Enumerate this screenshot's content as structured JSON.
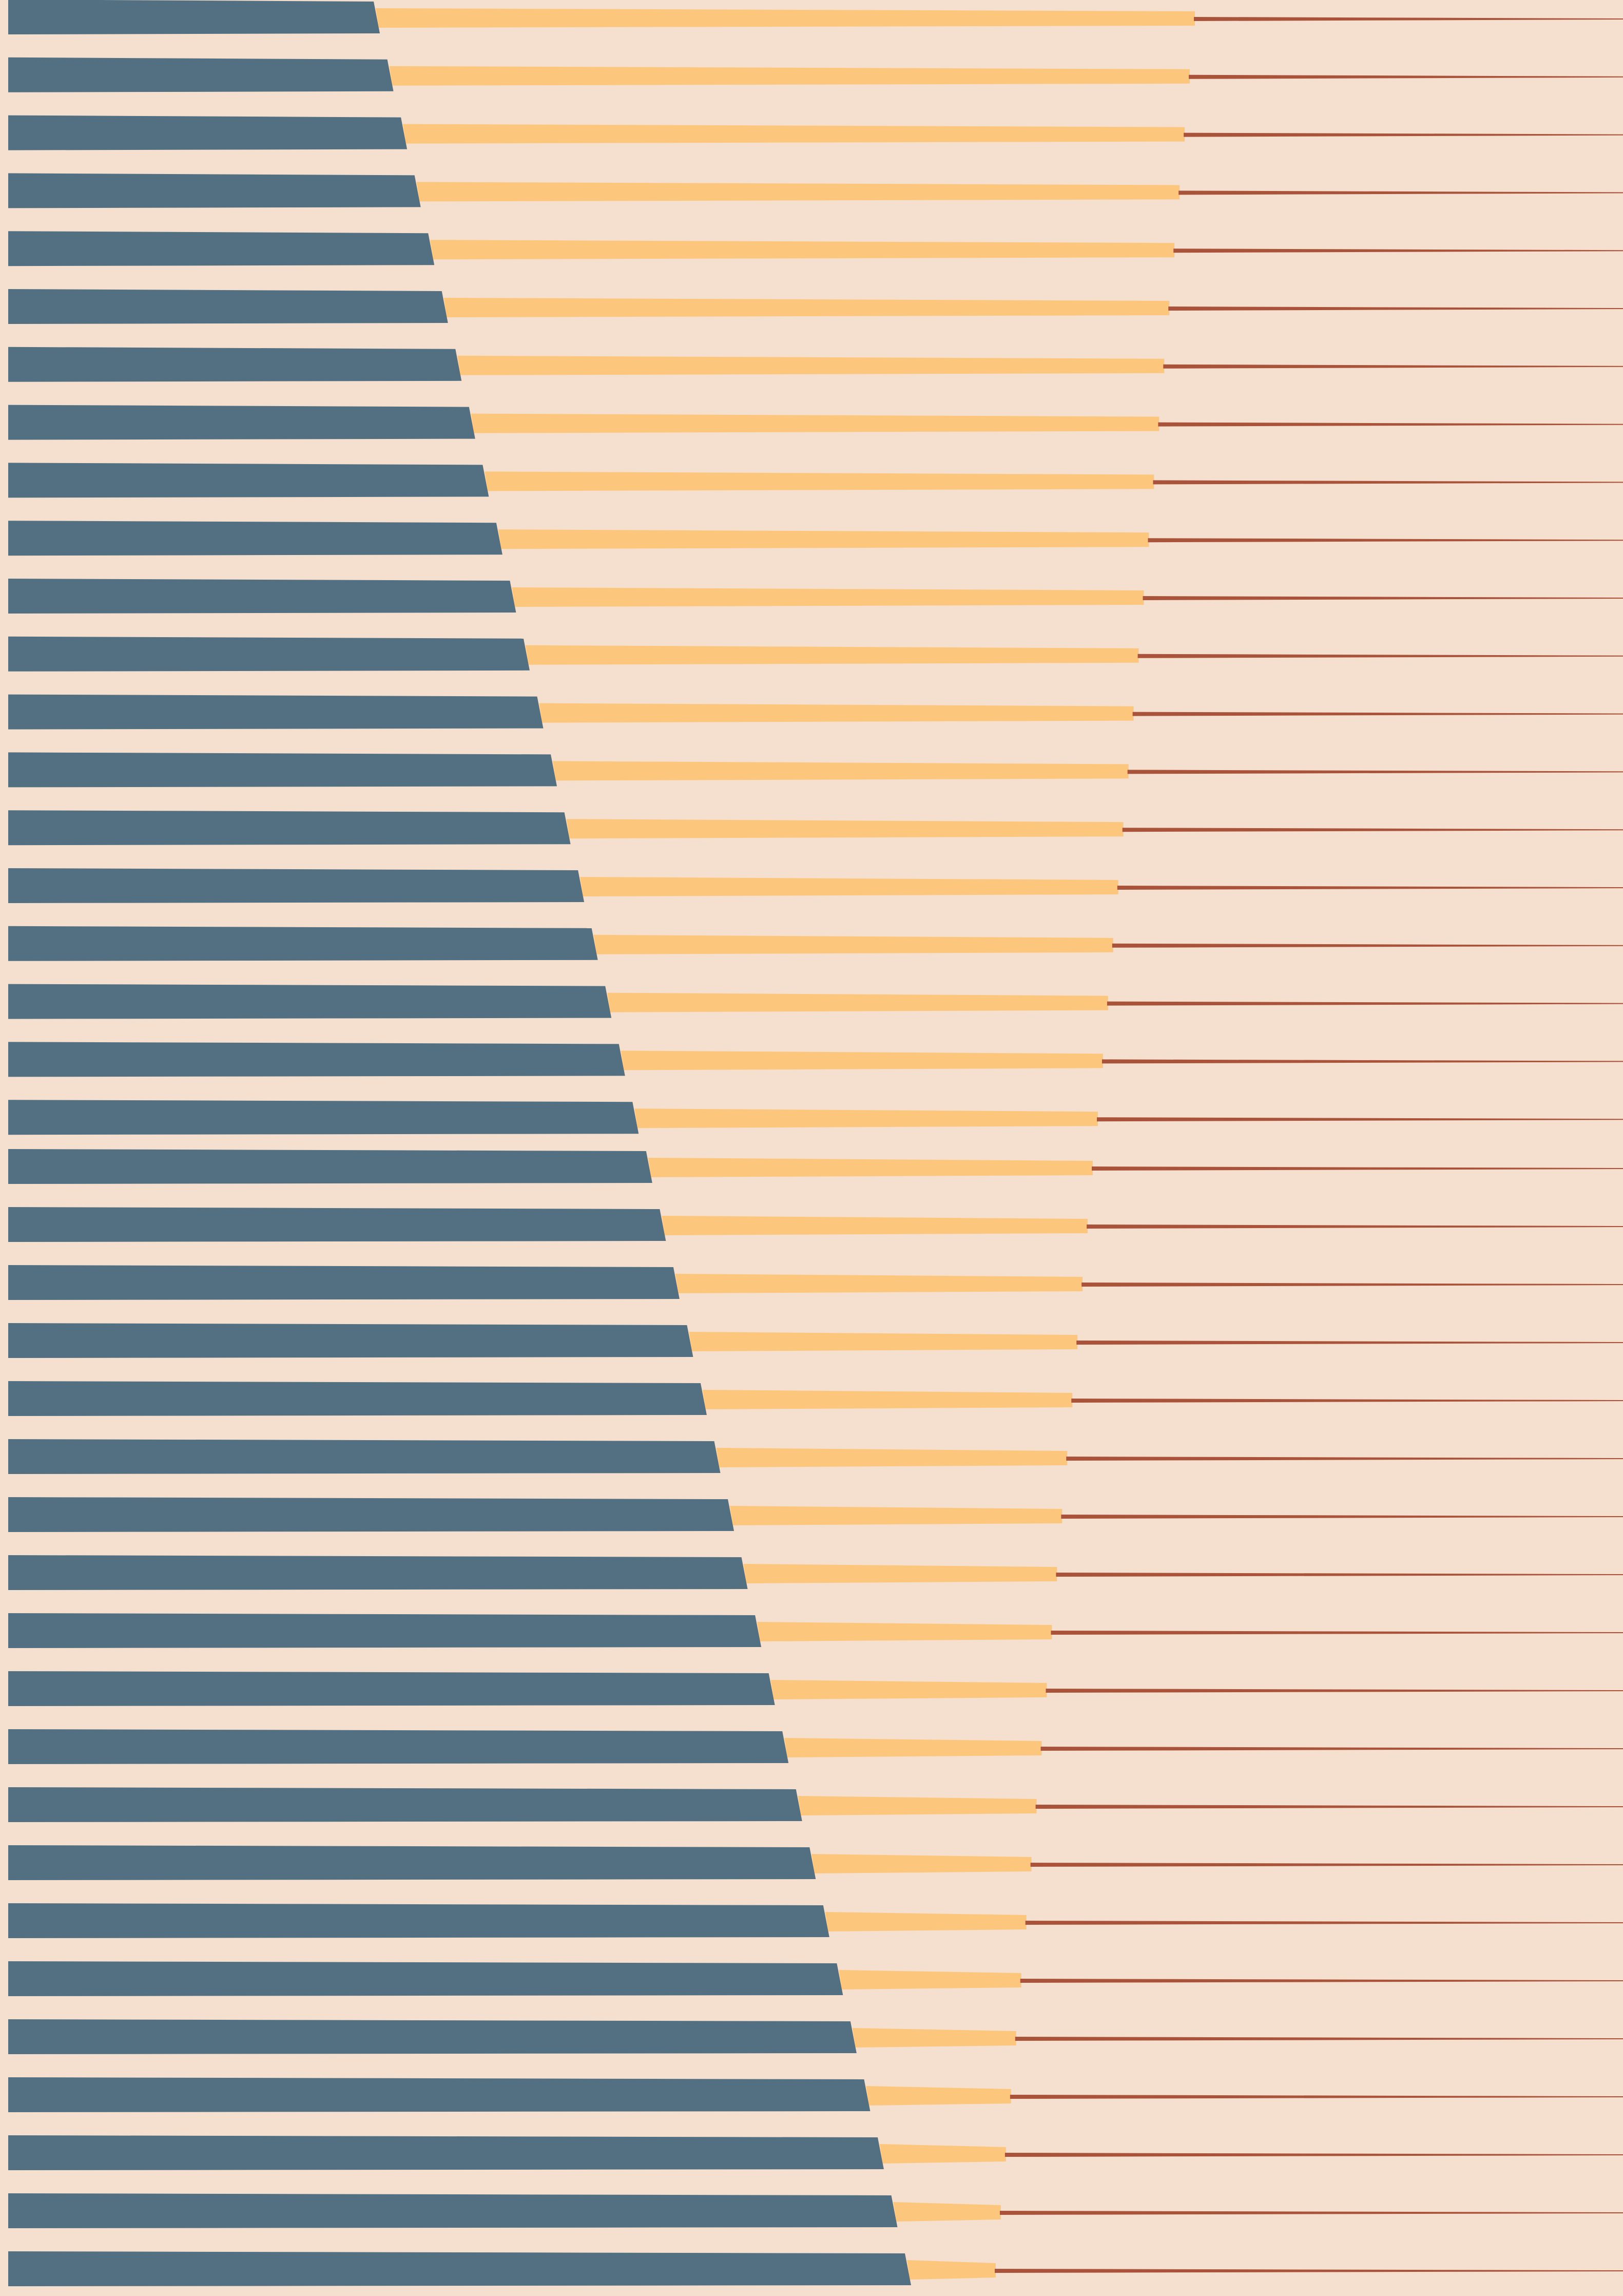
{
  "artwork": {
    "kind": "abstract-stripe-pattern",
    "colors": {
      "background": "#F5DFCF",
      "slate_band": "#527081",
      "amber_band": "#FCC77C",
      "rust_line": "#A9533A"
    },
    "stripe_count": 40
  }
}
